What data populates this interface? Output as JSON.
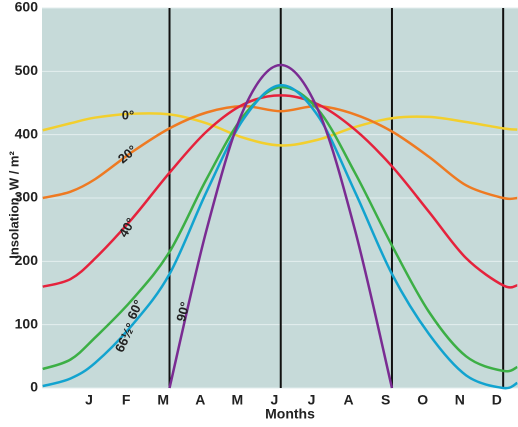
{
  "chart_data": {
    "type": "line",
    "y_label": "Insolation, W / m²",
    "x_label": "Months",
    "x": [
      -0.75,
      0,
      0.67,
      1.67,
      2.67,
      3.67,
      4.67,
      5.67,
      6.67,
      7.67,
      8.67,
      9.67,
      10.67,
      11.67,
      12.05
    ],
    "series": [
      {
        "name": "0°",
        "color": "#f2cf2e",
        "values": [
          407,
          418,
          427,
          433,
          432,
          418,
          395,
          383,
          392,
          412,
          426,
          428,
          420,
          410,
          408
        ]
      },
      {
        "name": "20°",
        "color": "#ee7a22",
        "values": [
          300,
          310,
          330,
          373,
          410,
          435,
          445,
          437,
          445,
          432,
          405,
          365,
          320,
          300,
          300
        ]
      },
      {
        "name": "40°",
        "color": "#e5223c",
        "values": [
          160,
          172,
          205,
          268,
          340,
          405,
          448,
          462,
          448,
          408,
          350,
          278,
          205,
          162,
          162
        ]
      },
      {
        "name": "60°",
        "color": "#3caf45",
        "values": [
          30,
          45,
          80,
          140,
          215,
          330,
          430,
          475,
          440,
          340,
          225,
          120,
          50,
          27,
          33
        ]
      },
      {
        "name": "66½°",
        "color": "#12a3cf",
        "values": [
          3,
          15,
          40,
          100,
          180,
          310,
          425,
          478,
          430,
          310,
          180,
          85,
          20,
          0,
          8
        ]
      },
      {
        "name": "90°",
        "color": "#7a2b92",
        "values": [
          null,
          null,
          null,
          null,
          0,
          250,
          440,
          510,
          440,
          250,
          0,
          null,
          null,
          null,
          null
        ]
      }
    ],
    "reference_lines": [
      2.67,
      5.67,
      8.67,
      11.67
    ],
    "xlim": [
      -0.77,
      12.07
    ],
    "xticks": [
      {
        "value": 0.5,
        "label": "J"
      },
      {
        "value": 1.5,
        "label": "F"
      },
      {
        "value": 2.5,
        "label": "M"
      },
      {
        "value": 3.5,
        "label": "A"
      },
      {
        "value": 4.5,
        "label": "M"
      },
      {
        "value": 5.5,
        "label": "J"
      },
      {
        "value": 6.5,
        "label": "J"
      },
      {
        "value": 7.5,
        "label": "A"
      },
      {
        "value": 8.5,
        "label": "S"
      },
      {
        "value": 9.5,
        "label": "O"
      },
      {
        "value": 10.5,
        "label": "N"
      },
      {
        "value": 11.5,
        "label": "D"
      }
    ],
    "ylim": [
      0,
      600
    ],
    "yticks": [
      0,
      100,
      200,
      300,
      400,
      500,
      600
    ],
    "grid": true
  }
}
